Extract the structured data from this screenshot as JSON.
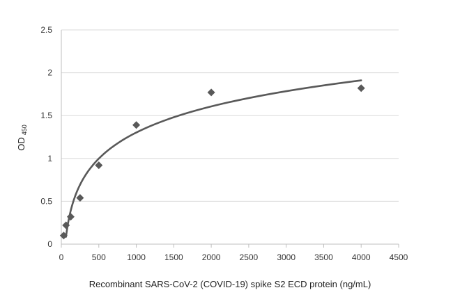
{
  "chart_data": {
    "type": "scatter",
    "xlabel": "Recombinant SARS-CoV-2 (COVID-19) spike S2  ECD protein (ng/mL)",
    "ylabel": {
      "main": "OD",
      "subscript": "450"
    },
    "xlim": [
      0,
      4500
    ],
    "ylim": [
      0,
      2.5
    ],
    "x_ticks": [
      0,
      500,
      1000,
      1500,
      2000,
      2500,
      3000,
      3500,
      4000,
      4500
    ],
    "y_ticks": [
      0,
      0.5,
      1,
      1.5,
      2,
      2.5
    ],
    "y_tick_labels": [
      "0",
      "0.5",
      "1",
      "1.5",
      "2",
      "2.5"
    ],
    "grid": "horizontal",
    "legend": "none",
    "series": [
      {
        "marker": "diamond",
        "color": "#595959",
        "x": [
          31.25,
          62.5,
          125,
          250,
          500,
          1000,
          2000,
          4000
        ],
        "y": [
          0.1,
          0.22,
          0.32,
          0.54,
          0.92,
          1.39,
          1.77,
          1.82
        ]
      }
    ],
    "trendline": {
      "type": "logarithmic",
      "color": "#595959",
      "x_range": [
        62.5,
        4000
      ],
      "a": 0.439,
      "b": -1.73
    },
    "colors": {
      "axis": "#bfbfbf",
      "grid": "#d9d9d9",
      "marker": "#595959",
      "line": "#595959"
    }
  }
}
